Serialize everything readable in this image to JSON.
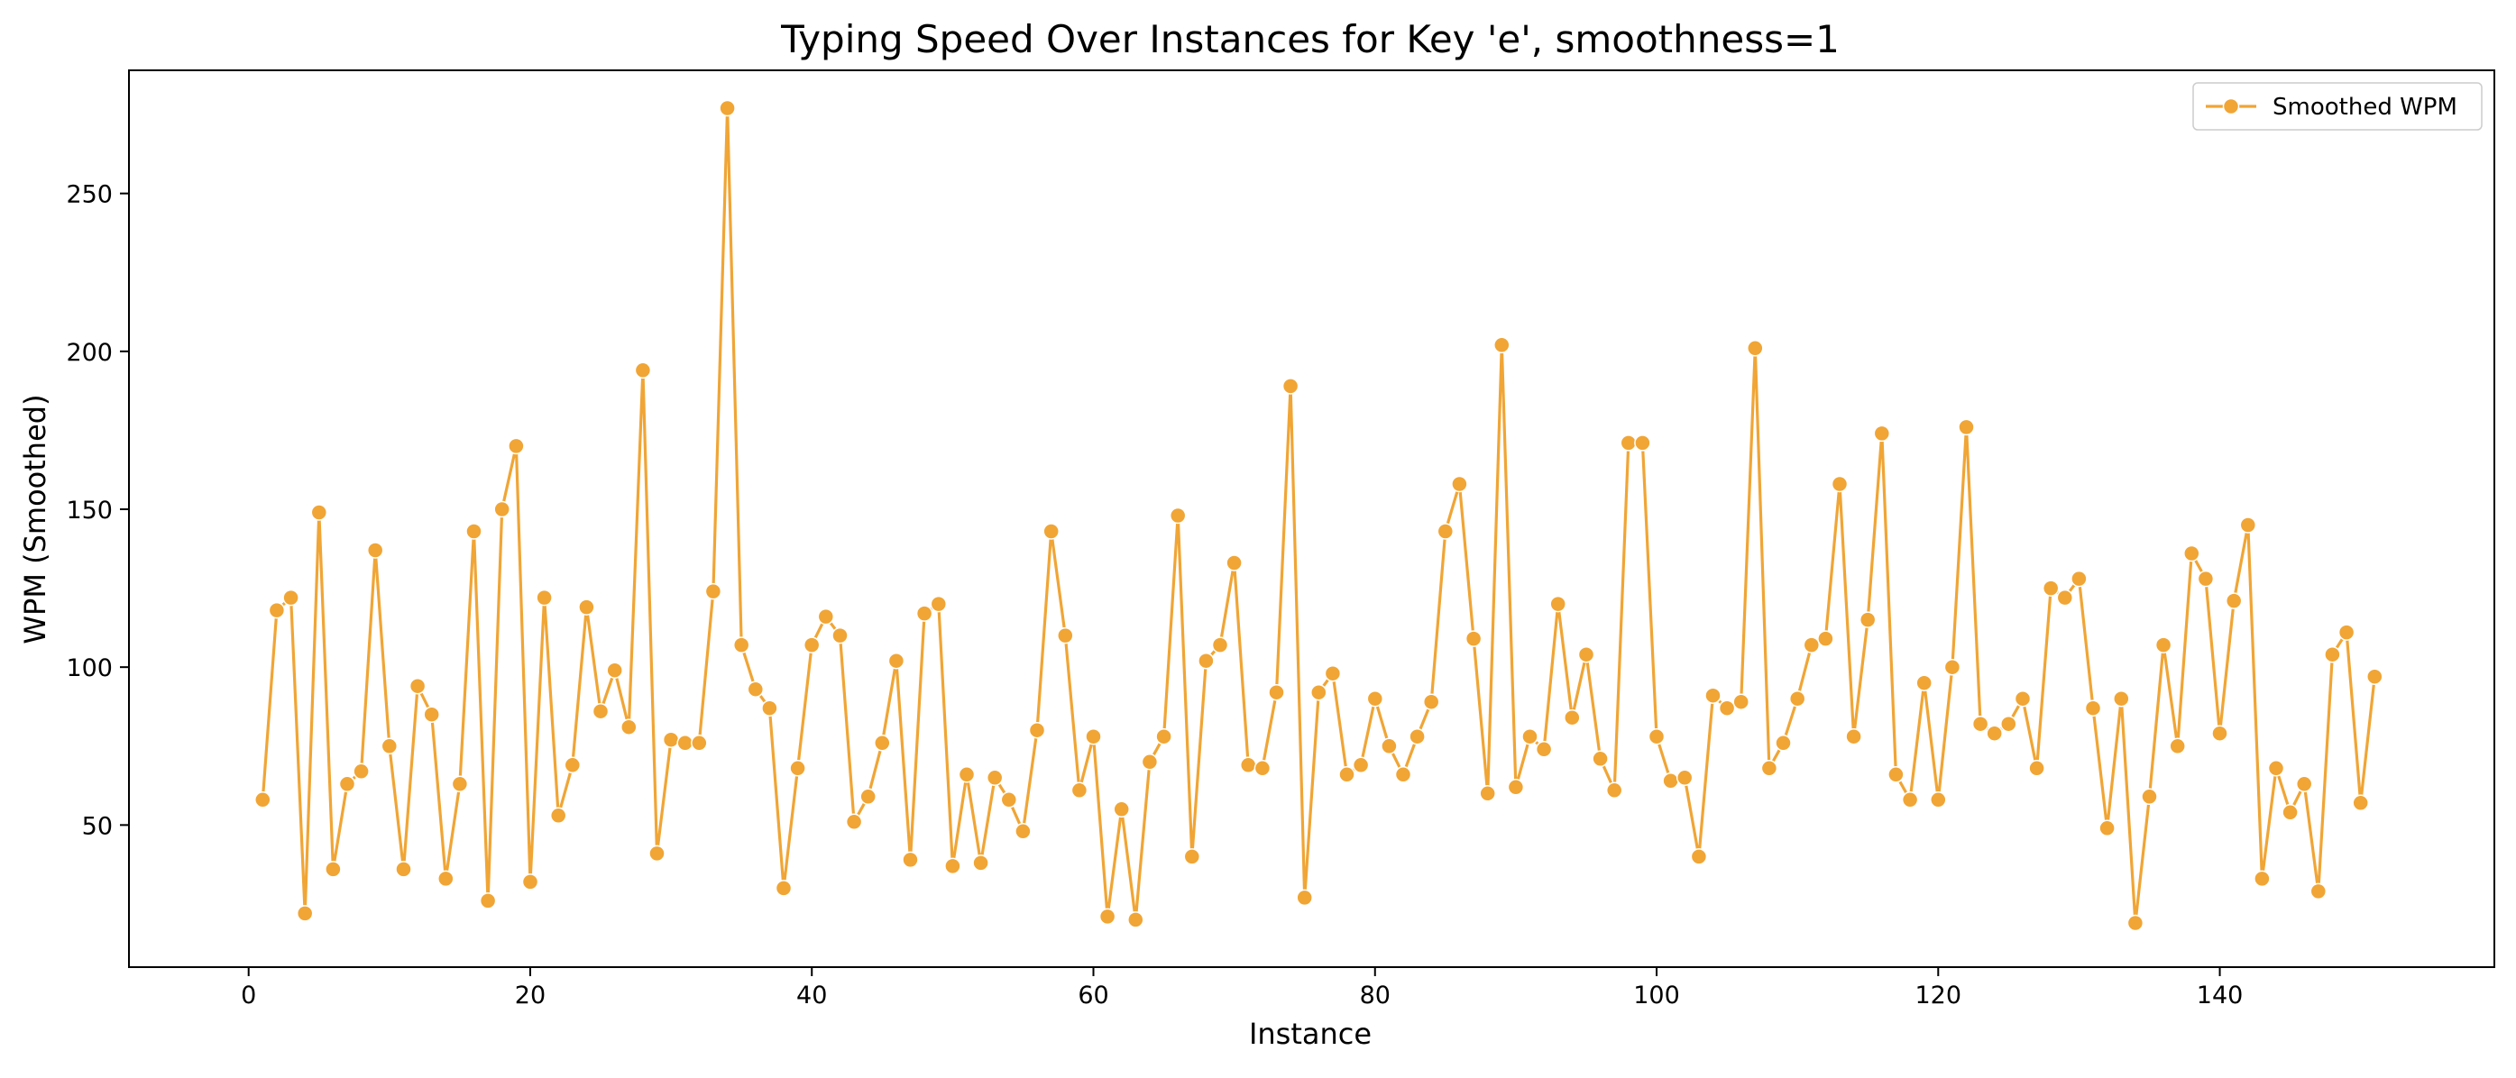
{
  "chart_data": {
    "type": "line",
    "title": "Typing Speed Over Instances for Key 'e', smoothness=1",
    "xlabel": "Instance",
    "ylabel": "WPM (Smoothed)",
    "xlim": [
      -8.5,
      159.5
    ],
    "ylim": [
      5,
      289
    ],
    "x_ticks": [
      0,
      20,
      40,
      60,
      80,
      100,
      120,
      140
    ],
    "y_ticks": [
      50,
      100,
      150,
      200,
      250
    ],
    "grid": false,
    "legend": {
      "position": "top-right",
      "entries": [
        "Smoothed WPM"
      ]
    },
    "colors": {
      "series": "#f0a535",
      "marker_edge": "#ffffff"
    },
    "series": [
      {
        "name": "Smoothed WPM",
        "x_start": 1,
        "x_step": 1,
        "values": [
          58,
          118,
          122,
          22,
          149,
          36,
          63,
          67,
          137,
          75,
          36,
          94,
          85,
          33,
          63,
          143,
          26,
          150,
          170,
          32,
          122,
          53,
          69,
          119,
          86,
          99,
          81,
          194,
          41,
          77,
          76,
          76,
          124,
          277,
          107,
          93,
          87,
          30,
          68,
          107,
          116,
          110,
          51,
          59,
          76,
          102,
          39,
          117,
          120,
          37,
          66,
          38,
          65,
          58,
          48,
          80,
          143,
          110,
          61,
          78,
          21,
          55,
          20,
          70,
          78,
          148,
          40,
          102,
          107,
          133,
          69,
          68,
          92,
          189,
          27,
          92,
          98,
          66,
          69,
          90,
          75,
          66,
          78,
          89,
          143,
          158,
          109,
          60,
          202,
          62,
          78,
          74,
          120,
          84,
          104,
          71,
          61,
          171,
          171,
          78,
          64,
          65,
          40,
          91,
          87,
          89,
          201,
          68,
          76,
          90,
          107,
          109,
          158,
          78,
          115,
          174,
          66,
          58,
          95,
          58,
          100,
          176,
          82,
          79,
          82,
          90,
          68,
          125,
          122,
          128,
          87,
          49,
          90,
          19,
          59,
          107,
          75,
          136,
          128,
          79,
          121,
          145,
          33,
          68,
          54,
          63,
          29,
          104,
          111,
          57,
          97
        ]
      }
    ]
  }
}
